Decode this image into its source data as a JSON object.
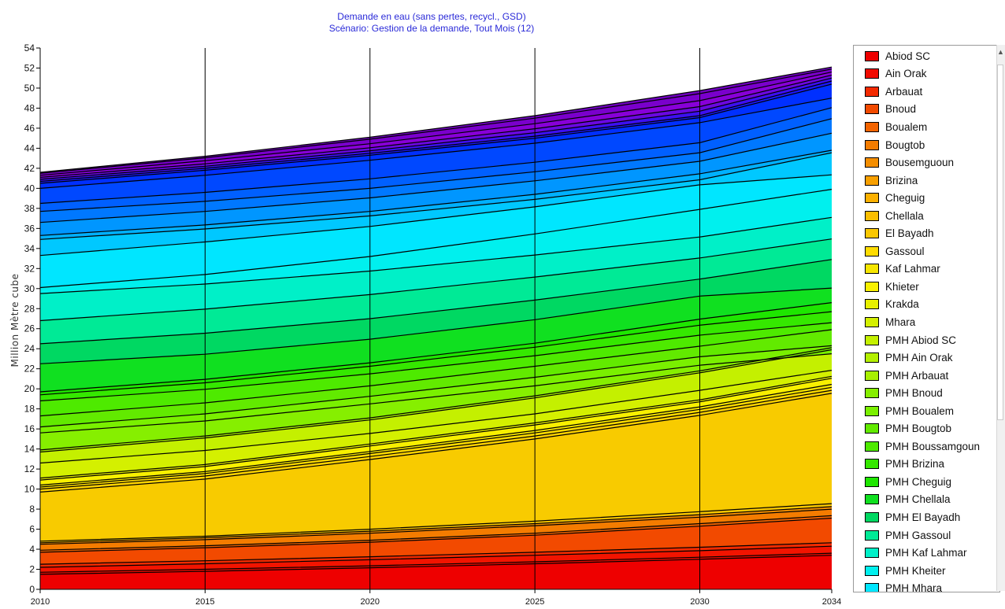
{
  "chart_data": {
    "type": "area",
    "stacked": true,
    "title": "Demande en eau (sans pertes, recycl., GSD)",
    "subtitle": "Scénario: Gestion de la demande,  Tout Mois (12)",
    "ylabel": "Million Mètre cube",
    "xlabel": "",
    "x": [
      2010,
      2015,
      2020,
      2025,
      2030,
      2034
    ],
    "x_ticks": [
      "2010",
      "2015",
      "2020",
      "2025",
      "2030",
      "2034"
    ],
    "ylim": [
      0,
      54
    ],
    "y_ticks": [
      0,
      2,
      4,
      6,
      8,
      10,
      12,
      14,
      16,
      18,
      20,
      22,
      24,
      26,
      28,
      30,
      32,
      34,
      36,
      38,
      40,
      42,
      44,
      46,
      48,
      50,
      52,
      54
    ],
    "grid": "vertical",
    "legend_position": "right",
    "boundaries": [
      [
        1.5,
        1.8,
        2.15,
        2.55,
        3.0,
        3.4
      ],
      [
        1.7,
        2.0,
        2.35,
        2.75,
        3.2,
        3.6
      ],
      [
        2.2,
        2.55,
        2.95,
        3.4,
        3.85,
        4.3
      ],
      [
        2.5,
        2.85,
        3.25,
        3.7,
        4.2,
        4.65
      ],
      [
        3.7,
        4.15,
        4.7,
        5.4,
        6.3,
        7.1
      ],
      [
        3.9,
        4.35,
        4.9,
        5.6,
        6.55,
        7.35
      ],
      [
        4.5,
        4.95,
        5.6,
        6.35,
        7.2,
        8.0
      ],
      [
        4.65,
        5.15,
        5.8,
        6.55,
        7.45,
        8.25
      ],
      [
        4.8,
        5.3,
        6.0,
        6.8,
        7.75,
        8.55
      ],
      [
        9.7,
        11.0,
        12.95,
        15.0,
        17.35,
        19.55
      ],
      [
        10.0,
        11.3,
        13.25,
        15.3,
        17.65,
        19.85
      ],
      [
        10.2,
        11.55,
        13.55,
        15.6,
        17.95,
        20.15
      ],
      [
        10.4,
        11.75,
        13.75,
        15.85,
        18.2,
        20.45
      ],
      [
        10.9,
        12.25,
        14.3,
        16.4,
        18.7,
        21.05
      ],
      [
        11.1,
        12.45,
        14.5,
        16.6,
        18.9,
        21.25
      ],
      [
        12.6,
        13.85,
        15.55,
        17.5,
        19.85,
        21.85
      ],
      [
        13.7,
        15.1,
        16.9,
        19.1,
        21.6,
        23.9
      ],
      [
        13.9,
        15.3,
        17.1,
        19.3,
        21.8,
        24.1
      ],
      [
        15.6,
        16.8,
        18.5,
        20.3,
        22.35,
        23.5
      ],
      [
        16.2,
        17.5,
        19.25,
        21.15,
        23.2,
        24.3
      ],
      [
        17.3,
        18.6,
        20.3,
        22.25,
        24.25,
        25.9
      ],
      [
        18.8,
        19.95,
        21.5,
        23.3,
        25.35,
        26.6
      ],
      [
        19.4,
        20.6,
        22.25,
        24.15,
        26.35,
        27.7
      ],
      [
        19.7,
        20.95,
        22.6,
        24.55,
        26.95,
        28.6
      ],
      [
        22.5,
        23.45,
        24.95,
        26.9,
        29.25,
        30.05
      ],
      [
        24.5,
        25.55,
        27.0,
        28.85,
        30.95,
        32.9
      ],
      [
        26.8,
        27.95,
        29.4,
        31.15,
        33.05,
        34.95
      ],
      [
        29.5,
        30.45,
        31.75,
        33.35,
        35.15,
        37.1
      ],
      [
        30.1,
        31.4,
        33.2,
        35.45,
        37.9,
        39.9
      ],
      [
        33.3,
        34.65,
        36.2,
        38.15,
        40.35,
        41.35
      ],
      [
        34.9,
        35.95,
        37.25,
        38.9,
        40.85,
        43.55
      ],
      [
        35.3,
        36.35,
        37.7,
        39.4,
        41.45,
        43.8
      ],
      [
        36.6,
        37.7,
        39.05,
        40.75,
        42.7,
        45.5
      ],
      [
        37.7,
        38.7,
        40.0,
        41.65,
        43.55,
        46.95
      ],
      [
        38.5,
        39.6,
        40.95,
        42.6,
        44.55,
        48.05
      ],
      [
        40.0,
        41.3,
        42.8,
        44.5,
        46.55,
        49.0
      ],
      [
        40.5,
        41.8,
        43.3,
        45.0,
        47.05,
        50.4
      ],
      [
        40.7,
        42.0,
        43.5,
        45.2,
        47.25,
        50.7
      ],
      [
        40.9,
        42.2,
        43.75,
        45.55,
        47.7,
        51.0
      ],
      [
        41.1,
        42.45,
        44.05,
        45.95,
        48.15,
        51.3
      ],
      [
        41.3,
        42.75,
        44.45,
        46.45,
        48.75,
        51.6
      ],
      [
        41.5,
        43.05,
        44.9,
        47.0,
        49.45,
        51.9
      ],
      [
        41.6,
        43.2,
        45.1,
        47.25,
        49.75,
        52.1
      ]
    ],
    "layer_colors": [
      "#ee0000",
      "#f00a00",
      "#f21400",
      "#f22a00",
      "#f24a00",
      "#f46400",
      "#f47c00",
      "#f48e00",
      "#fbc800",
      "#f8cb00",
      "#ffd200",
      "#ffdc00",
      "#f6e600",
      "#f8f000",
      "#e8f000",
      "#d4f000",
      "#c4f000",
      "#a8f000",
      "#86ef00",
      "#7af000",
      "#62ea00",
      "#4eea00",
      "#35e800",
      "#1ee600",
      "#10e020",
      "#00d862",
      "#00ea96",
      "#00f0c8",
      "#00f0ee",
      "#00e6ff",
      "#00c8ff",
      "#00b0ff",
      "#0096ff",
      "#0078ff",
      "#0060ff",
      "#0048ff",
      "#0030ff",
      "#1a18ff",
      "#3c10f0",
      "#6a08e0",
      "#8800d8",
      "#7a00cc",
      "#7000c0"
    ],
    "legend": [
      {
        "name": "Abiod SC",
        "color": "#ee0000"
      },
      {
        "name": "Ain Orak",
        "color": "#f00a00"
      },
      {
        "name": "Arbauat",
        "color": "#f42a00"
      },
      {
        "name": "Bnoud",
        "color": "#f24a00"
      },
      {
        "name": "Boualem",
        "color": "#f46400"
      },
      {
        "name": "Bougtob",
        "color": "#f47c00"
      },
      {
        "name": "Bousemguoun",
        "color": "#f48e00"
      },
      {
        "name": "Brizina",
        "color": "#f8a000"
      },
      {
        "name": "Cheguig",
        "color": "#fbb000"
      },
      {
        "name": "Chellala",
        "color": "#fbbe00"
      },
      {
        "name": "El Bayadh",
        "color": "#fbc800"
      },
      {
        "name": "Gassoul",
        "color": "#ffdc00"
      },
      {
        "name": "Kaf Lahmar",
        "color": "#f6e600"
      },
      {
        "name": "Khieter",
        "color": "#f8f000"
      },
      {
        "name": "Krakda",
        "color": "#e8f000"
      },
      {
        "name": "Mhara",
        "color": "#d4f000"
      },
      {
        "name": "PMH Abiod SC",
        "color": "#c4f000"
      },
      {
        "name": "PMH Ain Orak",
        "color": "#b4f000"
      },
      {
        "name": "PMH Arbauat",
        "color": "#a8f000"
      },
      {
        "name": "PMH Bnoud",
        "color": "#86ef00"
      },
      {
        "name": "PMH Boualem",
        "color": "#7af000"
      },
      {
        "name": "PMH Bougtob",
        "color": "#62ea00"
      },
      {
        "name": "PMH Boussamgoun",
        "color": "#4eea00"
      },
      {
        "name": "PMH Brizina",
        "color": "#35e800"
      },
      {
        "name": "PMH Cheguig",
        "color": "#1ee600"
      },
      {
        "name": "PMH Chellala",
        "color": "#10e020"
      },
      {
        "name": "PMH El Bayadh",
        "color": "#00d862"
      },
      {
        "name": "PMH Gassoul",
        "color": "#00ea96"
      },
      {
        "name": "PMH Kaf Lahmar",
        "color": "#00f0c8"
      },
      {
        "name": "PMH Kheiter",
        "color": "#00f0ee"
      },
      {
        "name": "PMH Mhara",
        "color": "#00e6ff"
      }
    ]
  }
}
